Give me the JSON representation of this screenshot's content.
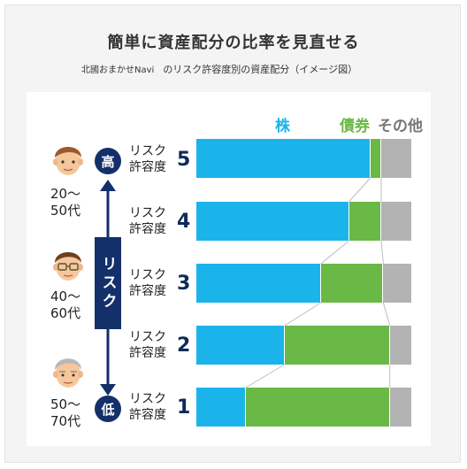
{
  "title": "簡単に資産配分の比率を見直せる",
  "subtitle": {
    "brand": "北國おまかせNavi",
    "text": "のリスク許容度別の資産配分（イメージ図）"
  },
  "legend": {
    "stock": "株",
    "bond": "債券",
    "other": "その他"
  },
  "axis": {
    "high": "高",
    "low": "低",
    "risk": "リスク"
  },
  "colors": {
    "stock": "#1ab4ea",
    "bond": "#6ab845",
    "other": "#b3b3b3",
    "navy": "#14306a"
  },
  "ages": [
    {
      "l1": "20～",
      "l2": "50代",
      "icon": "young-man-face-icon"
    },
    {
      "l1": "40～",
      "l2": "60代",
      "icon": "glasses-man-face-icon"
    },
    {
      "l1": "50～",
      "l2": "70代",
      "icon": "gray-haired-man-face-icon"
    }
  ],
  "levels": [
    {
      "l1": "リスク",
      "l2": "許容度",
      "num": "5",
      "stock": 81,
      "bond": 5,
      "other": 14
    },
    {
      "l1": "リスク",
      "l2": "許容度",
      "num": "4",
      "stock": 71,
      "bond": 15,
      "other": 14
    },
    {
      "l1": "リスク",
      "l2": "許容度",
      "num": "3",
      "stock": 58,
      "bond": 29,
      "other": 13
    },
    {
      "l1": "リスク",
      "l2": "許容度",
      "num": "2",
      "stock": 41,
      "bond": 49,
      "other": 10
    },
    {
      "l1": "リスク",
      "l2": "許容度",
      "num": "1",
      "stock": 23,
      "bond": 67,
      "other": 10
    }
  ]
}
